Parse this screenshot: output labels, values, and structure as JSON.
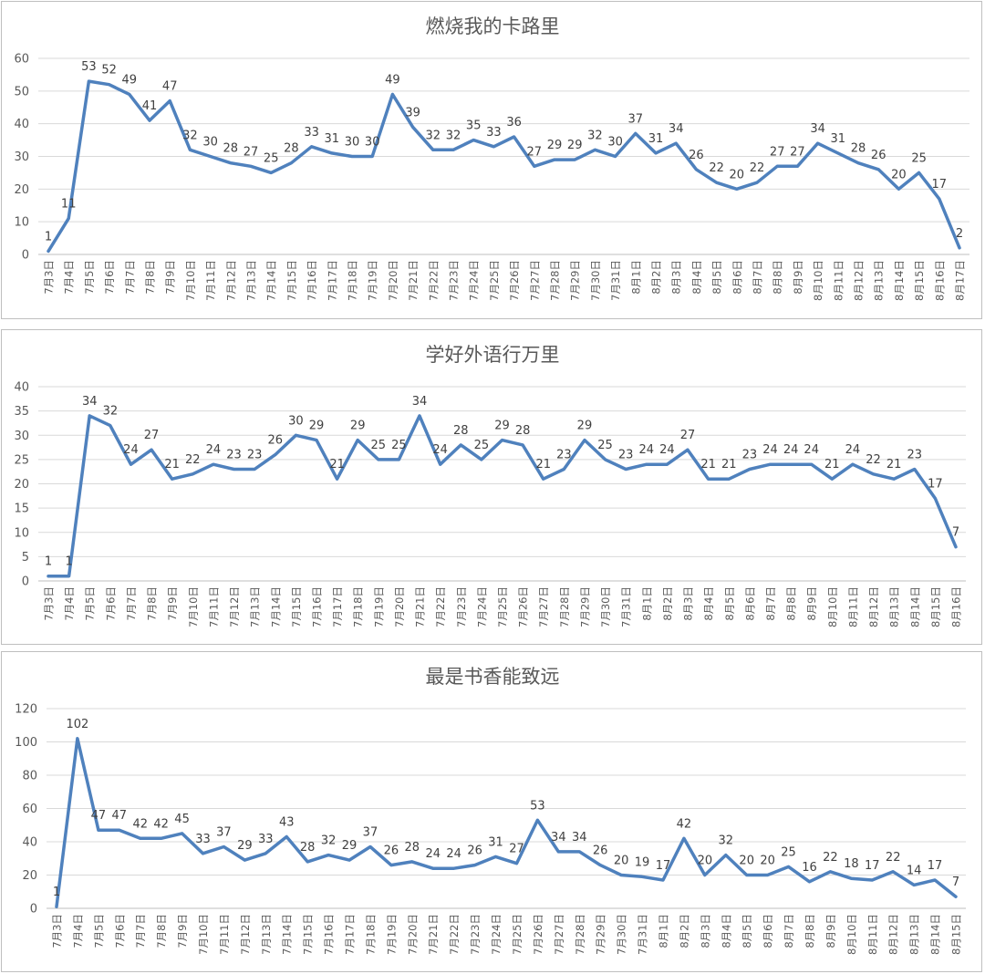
{
  "chart_data": [
    {
      "type": "line",
      "title": "燃烧我的卡路里",
      "ylim": [
        0,
        60
      ],
      "yticks": [
        0,
        10,
        20,
        30,
        40,
        50,
        60
      ],
      "grid": true,
      "line_color": "#4f81bd",
      "categories": [
        "7月3日",
        "7月4日",
        "7月5日",
        "7月6日",
        "7月7日",
        "7月8日",
        "7月9日",
        "7月10日",
        "7月11日",
        "7月12日",
        "7月13日",
        "7月14日",
        "7月15日",
        "7月16日",
        "7月17日",
        "7月18日",
        "7月19日",
        "7月20日",
        "7月21日",
        "7月22日",
        "7月23日",
        "7月24日",
        "7月25日",
        "7月26日",
        "7月27日",
        "7月28日",
        "7月29日",
        "7月30日",
        "7月31日",
        "8月1日",
        "8月2日",
        "8月3日",
        "8月4日",
        "8月5日",
        "8月6日",
        "8月7日",
        "8月8日",
        "8月9日",
        "8月10日",
        "8月11日",
        "8月12日",
        "8月13日",
        "8月14日",
        "8月15日",
        "8月16日",
        "8月17日"
      ],
      "values": [
        1,
        11,
        53,
        52,
        49,
        41,
        47,
        32,
        30,
        28,
        27,
        25,
        28,
        33,
        31,
        30,
        30,
        49,
        39,
        32,
        32,
        35,
        33,
        36,
        27,
        29,
        29,
        32,
        30,
        37,
        31,
        34,
        26,
        22,
        20,
        22,
        27,
        27,
        34,
        31,
        28,
        26,
        20,
        25,
        17,
        2
      ]
    },
    {
      "type": "line",
      "title": "学好外语行万里",
      "ylim": [
        0,
        40
      ],
      "yticks": [
        0,
        5,
        10,
        15,
        20,
        25,
        30,
        35,
        40
      ],
      "grid": true,
      "line_color": "#4f81bd",
      "categories": [
        "7月3日",
        "7月4日",
        "7月5日",
        "7月6日",
        "7月7日",
        "7月8日",
        "7月9日",
        "7月10日",
        "7月11日",
        "7月12日",
        "7月13日",
        "7月14日",
        "7月15日",
        "7月16日",
        "7月17日",
        "7月18日",
        "7月19日",
        "7月20日",
        "7月21日",
        "7月22日",
        "7月23日",
        "7月24日",
        "7月25日",
        "7月26日",
        "7月27日",
        "7月28日",
        "7月29日",
        "7月30日",
        "7月31日",
        "8月1日",
        "8月2日",
        "8月3日",
        "8月4日",
        "8月5日",
        "8月6日",
        "8月7日",
        "8月8日",
        "8月9日",
        "8月10日",
        "8月11日",
        "8月12日",
        "8月13日",
        "8月14日",
        "8月15日",
        "8月16日"
      ],
      "values": [
        1,
        1,
        34,
        32,
        24,
        27,
        21,
        22,
        24,
        23,
        23,
        26,
        30,
        29,
        21,
        29,
        25,
        25,
        34,
        24,
        28,
        25,
        29,
        28,
        21,
        23,
        29,
        25,
        23,
        24,
        24,
        27,
        21,
        21,
        23,
        24,
        24,
        24,
        21,
        24,
        22,
        21,
        23,
        17,
        7
      ]
    },
    {
      "type": "line",
      "title": "最是书香能致远",
      "ylim": [
        0,
        120
      ],
      "yticks": [
        0,
        20,
        40,
        60,
        80,
        100,
        120
      ],
      "grid": true,
      "line_color": "#4f81bd",
      "categories": [
        "7月3日",
        "7月4日",
        "7月5日",
        "7月6日",
        "7月7日",
        "7月8日",
        "7月9日",
        "7月10日",
        "7月11日",
        "7月12日",
        "7月13日",
        "7月14日",
        "7月15日",
        "7月16日",
        "7月17日",
        "7月18日",
        "7月19日",
        "7月20日",
        "7月21日",
        "7月22日",
        "7月23日",
        "7月24日",
        "7月25日",
        "7月26日",
        "7月27日",
        "7月28日",
        "7月29日",
        "7月30日",
        "7月31日",
        "8月1日",
        "8月2日",
        "8月3日",
        "8月4日",
        "8月5日",
        "8月6日",
        "8月7日",
        "8月8日",
        "8月9日",
        "8月10日",
        "8月11日",
        "8月12日",
        "8月13日",
        "8月14日",
        "8月15日"
      ],
      "values": [
        1,
        102,
        47,
        47,
        42,
        42,
        45,
        33,
        37,
        29,
        33,
        43,
        28,
        32,
        29,
        37,
        26,
        28,
        24,
        24,
        26,
        31,
        27,
        53,
        34,
        34,
        26,
        20,
        19,
        17,
        42,
        20,
        32,
        20,
        20,
        25,
        16,
        22,
        18,
        17,
        22,
        14,
        17,
        7
      ]
    }
  ]
}
